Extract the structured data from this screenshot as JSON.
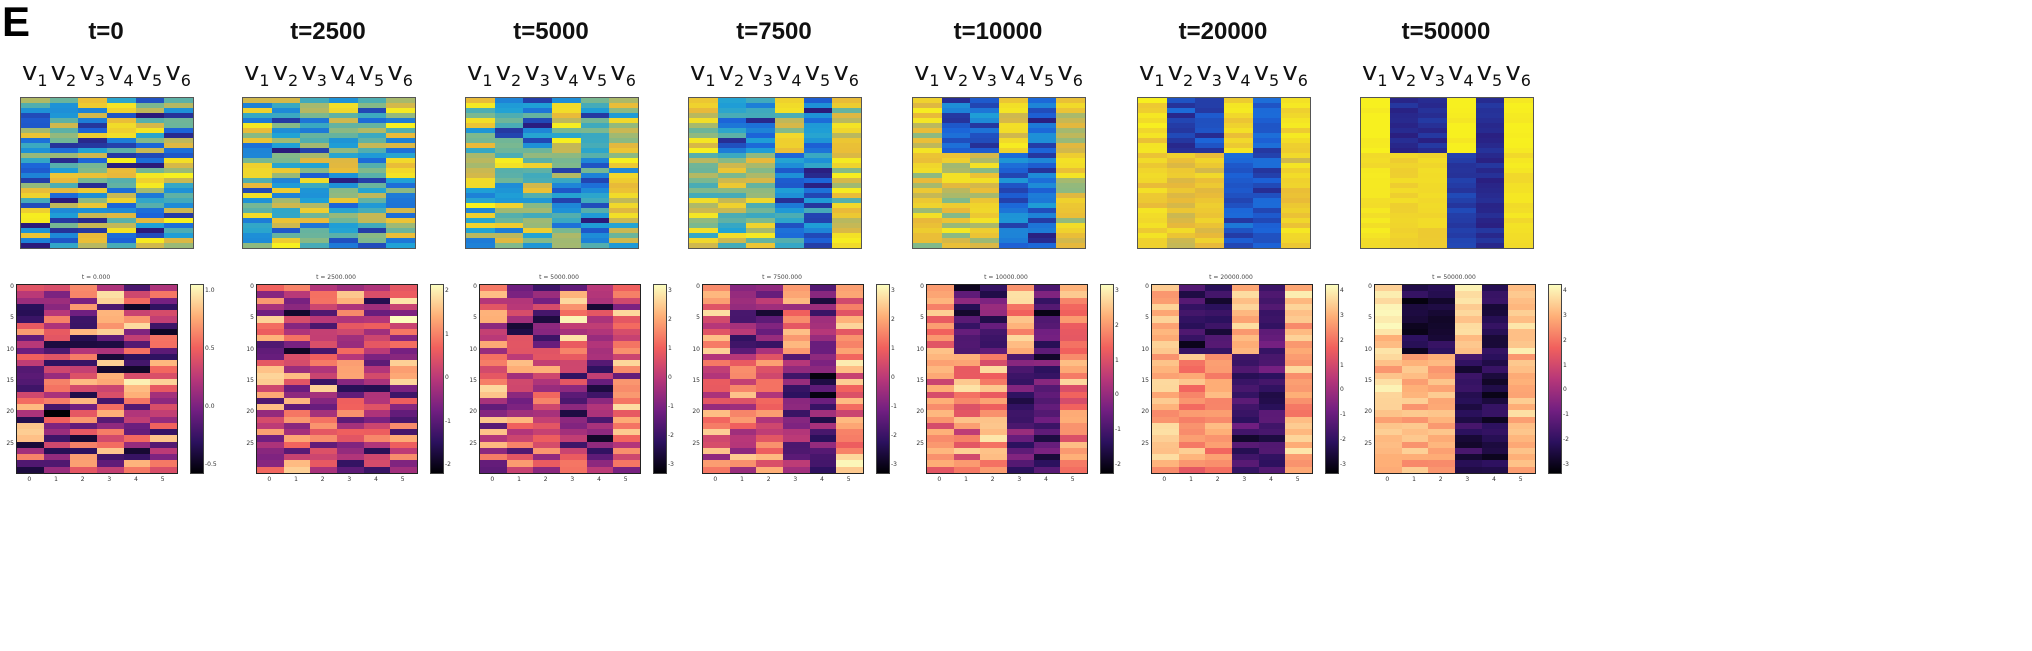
{
  "panel_letter": "E",
  "chart_data": {
    "type": "heatmap",
    "var_labels": [
      [
        "v",
        "1"
      ],
      [
        "v",
        "2"
      ],
      [
        "v",
        "3"
      ],
      [
        "v",
        "4"
      ],
      [
        "v",
        "5"
      ],
      [
        "v",
        "6"
      ]
    ],
    "panels": [
      {
        "title": "t=0",
        "small_title": "t = 0.000",
        "cbar_ticks": [
          "1.0",
          "0.5",
          "0.0",
          "-0.5"
        ],
        "ylim": [
          -0.8,
          1.3
        ],
        "y_ticks": [
          "0",
          "5",
          "10",
          "15",
          "20",
          "25"
        ],
        "x_ticks": [
          "0",
          "1",
          "2",
          "3",
          "4",
          "5"
        ]
      },
      {
        "title": "t=2500",
        "small_title": "t = 2500.000",
        "cbar_ticks": [
          "2",
          "1",
          "0",
          "-1",
          "-2"
        ],
        "ylim": [
          -2.5,
          2.5
        ],
        "y_ticks": [
          "0",
          "5",
          "10",
          "15",
          "20",
          "25"
        ],
        "x_ticks": [
          "0",
          "1",
          "2",
          "3",
          "4",
          "5"
        ]
      },
      {
        "title": "t=5000",
        "small_title": "t = 5000.000",
        "cbar_ticks": [
          "3",
          "2",
          "1",
          "0",
          "-1",
          "-2",
          "-3"
        ],
        "ylim": [
          -3.2,
          3.2
        ],
        "y_ticks": [
          "0",
          "5",
          "10",
          "15",
          "20",
          "25"
        ],
        "x_ticks": [
          "0",
          "1",
          "2",
          "3",
          "4",
          "5"
        ]
      },
      {
        "title": "t=7500",
        "small_title": "t = 7500.000",
        "cbar_ticks": [
          "3",
          "2",
          "1",
          "0",
          "-1",
          "-2",
          "-3"
        ],
        "ylim": [
          -3.5,
          3.5
        ],
        "y_ticks": [
          "0",
          "5",
          "10",
          "15",
          "20",
          "25"
        ],
        "x_ticks": [
          "0",
          "1",
          "2",
          "3",
          "4",
          "5"
        ]
      },
      {
        "title": "t=10000",
        "small_title": "t = 10000.000",
        "cbar_ticks": [
          "3",
          "2",
          "1",
          "0",
          "-1",
          "-2"
        ],
        "ylim": [
          -3,
          3.5
        ],
        "y_ticks": [
          "0",
          "5",
          "10",
          "15",
          "20",
          "25"
        ],
        "x_ticks": [
          "0",
          "1",
          "2",
          "3",
          "4",
          "5"
        ]
      },
      {
        "title": "t=20000",
        "small_title": "t = 20000.000",
        "cbar_ticks": [
          "4",
          "3",
          "2",
          "1",
          "0",
          "-1",
          "-2",
          "-3"
        ],
        "ylim": [
          -3.5,
          4
        ],
        "y_ticks": [
          "0",
          "5",
          "10",
          "15",
          "20",
          "25"
        ],
        "x_ticks": [
          "0",
          "1",
          "2",
          "3",
          "4",
          "5"
        ]
      },
      {
        "title": "t=50000",
        "small_title": "t = 50000.000",
        "cbar_ticks": [
          "4",
          "3",
          "2",
          "1",
          "0",
          "-1",
          "-2",
          "-3"
        ],
        "ylim": [
          -3.5,
          4
        ],
        "y_ticks": [
          "0",
          "5",
          "10",
          "15",
          "20",
          "25"
        ],
        "x_ticks": [
          "0",
          "1",
          "2",
          "3",
          "4",
          "5"
        ]
      }
    ],
    "rows": 30,
    "cols": 6,
    "top_colormap": [
      "#2b1a7a",
      "#1c63d8",
      "#1fa2d6",
      "#7fb98c",
      "#e8b83a",
      "#f7f01f"
    ],
    "bottom_colormap": [
      "#000004",
      "#2c115f",
      "#721f81",
      "#b73779",
      "#f1605d",
      "#feaf77",
      "#fcfdbf"
    ]
  }
}
